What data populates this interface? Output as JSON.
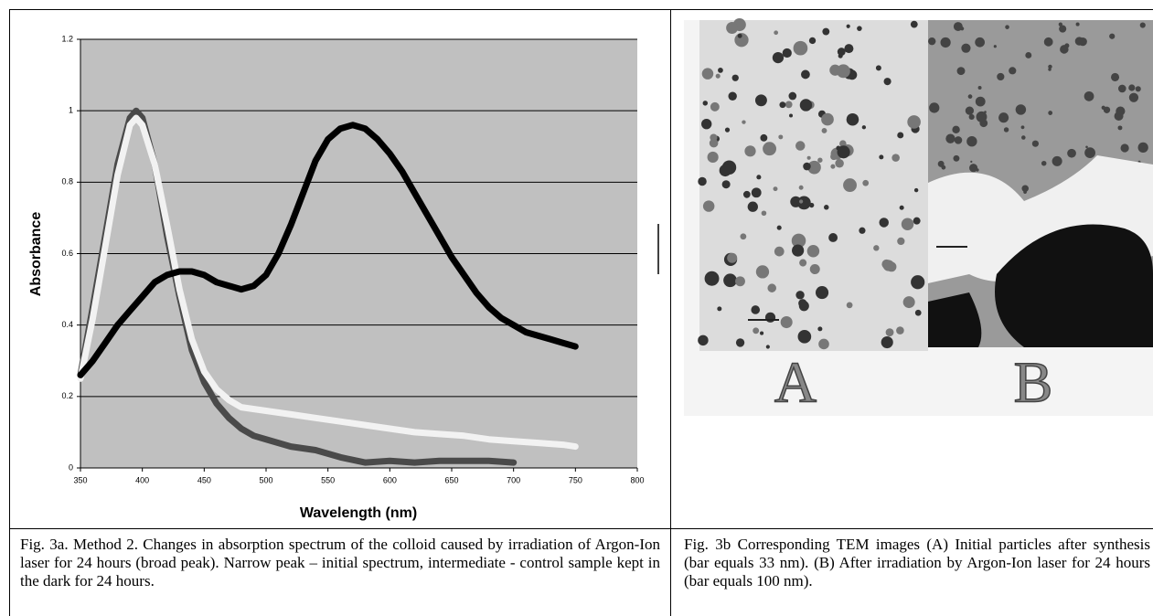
{
  "chart_data": {
    "type": "line",
    "x_label": "Wavelength (nm)",
    "y_label": "Absorbance",
    "xlim": [
      350,
      800
    ],
    "xticks": [
      350,
      400,
      450,
      500,
      550,
      600,
      650,
      700,
      750,
      800
    ],
    "ylim": [
      0,
      1.2
    ],
    "yticks": [
      0,
      0.2,
      0.4,
      0.6,
      0.8,
      1,
      1.2
    ],
    "grid": true,
    "background": "#c0c0c0",
    "series": [
      {
        "color": "#000000",
        "x": [
          350,
          360,
          370,
          380,
          390,
          400,
          410,
          420,
          430,
          440,
          450,
          460,
          470,
          480,
          490,
          500,
          510,
          520,
          530,
          540,
          550,
          560,
          570,
          580,
          590,
          600,
          610,
          620,
          630,
          640,
          650,
          660,
          670,
          680,
          690,
          700,
          710,
          720,
          730,
          740,
          750
        ],
        "values": [
          0.26,
          0.3,
          0.35,
          0.4,
          0.44,
          0.48,
          0.52,
          0.54,
          0.55,
          0.55,
          0.54,
          0.52,
          0.51,
          0.5,
          0.51,
          0.54,
          0.6,
          0.68,
          0.77,
          0.86,
          0.92,
          0.95,
          0.96,
          0.95,
          0.92,
          0.88,
          0.83,
          0.77,
          0.71,
          0.65,
          0.59,
          0.54,
          0.49,
          0.45,
          0.42,
          0.4,
          0.38,
          0.37,
          0.36,
          0.35,
          0.34
        ]
      },
      {
        "color": "#4a4a4a",
        "x": [
          350,
          360,
          370,
          380,
          390,
          395,
          400,
          410,
          420,
          430,
          440,
          450,
          460,
          470,
          480,
          490,
          500,
          520,
          540,
          560,
          580,
          600,
          620,
          640,
          660,
          680,
          700
        ],
        "values": [
          0.26,
          0.45,
          0.65,
          0.85,
          0.98,
          1,
          0.98,
          0.85,
          0.65,
          0.48,
          0.33,
          0.24,
          0.18,
          0.14,
          0.11,
          0.09,
          0.08,
          0.06,
          0.05,
          0.03,
          0.015,
          0.02,
          0.015,
          0.02,
          0.02,
          0.02,
          0.015
        ]
      },
      {
        "color": "#f2f2f2",
        "x": [
          350,
          360,
          370,
          380,
          390,
          395,
          400,
          410,
          420,
          430,
          440,
          450,
          460,
          470,
          480,
          500,
          520,
          540,
          560,
          580,
          600,
          620,
          640,
          660,
          680,
          700,
          720,
          740,
          750
        ],
        "values": [
          0.25,
          0.42,
          0.62,
          0.82,
          0.96,
          0.98,
          0.96,
          0.85,
          0.68,
          0.5,
          0.36,
          0.27,
          0.22,
          0.19,
          0.17,
          0.16,
          0.15,
          0.14,
          0.13,
          0.12,
          0.11,
          0.1,
          0.095,
          0.09,
          0.08,
          0.075,
          0.07,
          0.065,
          0.06
        ]
      }
    ]
  },
  "figure_b": {
    "panel_labels": [
      "A",
      "B"
    ]
  },
  "captions": [
    "Fig. 3a. Method 2. Changes in absorption spectrum of the colloid caused by irradiation of Argon-Ion laser for 24 hours (broad peak). Narrow peak – initial spectrum, intermediate - control sample kept in the dark for 24 hours.",
    "Fig. 3b Corresponding TEM images (A) Initial particles after synthesis (bar equals 33 nm). (B) After irradiation by Argon-Ion laser for 24 hours (bar equals 100 nm)."
  ]
}
